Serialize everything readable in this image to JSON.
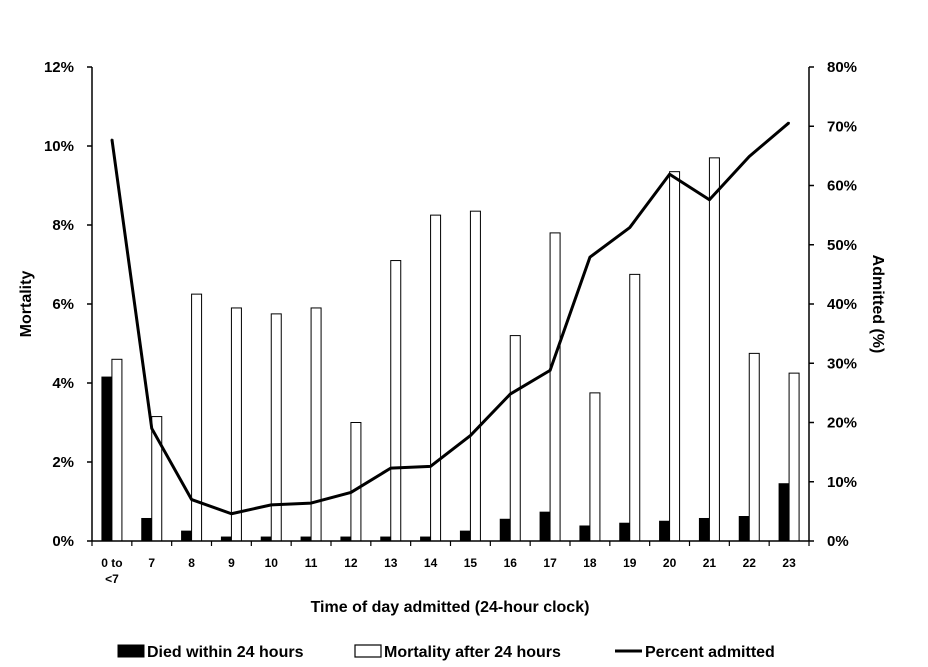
{
  "chart_data": {
    "type": "bar+line",
    "categories": [
      [
        "0 to",
        "<7"
      ],
      [
        "7"
      ],
      [
        "8"
      ],
      [
        "9"
      ],
      [
        "10"
      ],
      [
        "11"
      ],
      [
        "12"
      ],
      [
        "13"
      ],
      [
        "14"
      ],
      [
        "15"
      ],
      [
        "16"
      ],
      [
        "17"
      ],
      [
        "18"
      ],
      [
        "19"
      ],
      [
        "20"
      ],
      [
        "21"
      ],
      [
        "22"
      ],
      [
        "23"
      ]
    ],
    "xlabel": "Time of day admitted (24-hour clock)",
    "ylabel": "Mortality",
    "y2label": "Admitted (%)",
    "ylim": [
      0,
      12
    ],
    "y2lim": [
      0,
      80
    ],
    "yticks": [
      "0%",
      "2%",
      "4%",
      "6%",
      "8%",
      "10%",
      "12%"
    ],
    "y2ticks": [
      "0%",
      "10%",
      "20%",
      "30%",
      "40%",
      "50%",
      "60%",
      "70%",
      "80%"
    ],
    "series": [
      {
        "name": "Died within 24 hours",
        "kind": "bar",
        "axis": "left",
        "color": "#000000",
        "values": [
          4.15,
          0.57,
          0.25,
          0.1,
          0.1,
          0.1,
          0.1,
          0.1,
          0.1,
          0.25,
          0.55,
          0.73,
          0.38,
          0.45,
          0.5,
          0.57,
          0.62,
          1.45
        ]
      },
      {
        "name": "Mortality after 24 hours",
        "kind": "bar",
        "axis": "left",
        "color": "#ffffff",
        "values": [
          4.6,
          3.15,
          6.25,
          5.9,
          5.75,
          5.9,
          3.0,
          7.1,
          8.25,
          8.35,
          5.2,
          7.8,
          3.75,
          6.75,
          9.35,
          9.7,
          4.75,
          4.25
        ]
      },
      {
        "name": "Percent admitted",
        "kind": "line",
        "axis": "right",
        "color": "#000000",
        "values": [
          67.8,
          19.0,
          7.0,
          4.6,
          6.1,
          6.4,
          8.2,
          12.3,
          12.6,
          17.8,
          24.8,
          28.8,
          47.9,
          52.9,
          61.9,
          57.6,
          64.9,
          70.6
        ]
      }
    ],
    "legend": "bottom"
  }
}
